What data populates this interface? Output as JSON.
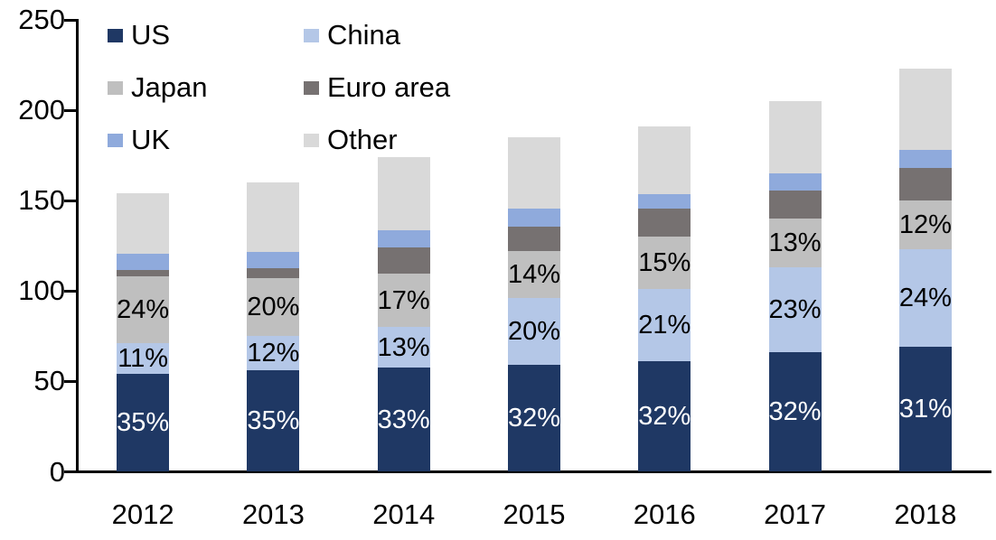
{
  "chart_data": {
    "type": "bar",
    "stacked": true,
    "title": "",
    "xlabel": "",
    "ylabel": "",
    "categories": [
      "2012",
      "2013",
      "2014",
      "2015",
      "2016",
      "2017",
      "2018"
    ],
    "series": [
      {
        "name": "US",
        "color": "#1f3864",
        "values": [
          54,
          56,
          57.5,
          59,
          61,
          66,
          69
        ],
        "percent_labels": [
          "35%",
          "35%",
          "33%",
          "32%",
          "32%",
          "32%",
          "31%"
        ],
        "label_color": "#ffffff"
      },
      {
        "name": "China",
        "color": "#b4c7e7",
        "values": [
          17,
          19,
          22.5,
          37,
          40,
          47,
          54
        ],
        "percent_labels": [
          "11%",
          "12%",
          "13%",
          "20%",
          "21%",
          "23%",
          "24%"
        ],
        "label_color": "#000000"
      },
      {
        "name": "Japan",
        "color": "#bfbfbf",
        "values": [
          37,
          32,
          29.5,
          26,
          29,
          27,
          27
        ],
        "percent_labels": [
          "24%",
          "20%",
          "17%",
          "14%",
          "15%",
          "13%",
          "12%"
        ],
        "label_color": "#000000"
      },
      {
        "name": "Euro area",
        "color": "#767171",
        "values": [
          3.5,
          5.5,
          14.5,
          13.5,
          15.5,
          15.5,
          18
        ]
      },
      {
        "name": "UK",
        "color": "#8faadc",
        "values": [
          9,
          9,
          9.5,
          10,
          8,
          9.5,
          10
        ]
      },
      {
        "name": "Other",
        "color": "#d9d9d9",
        "values": [
          33.5,
          38.5,
          40.5,
          39.5,
          37.5,
          40,
          45
        ]
      }
    ],
    "totals": [
      154,
      160,
      174,
      185,
      191,
      205,
      223
    ],
    "ylim": [
      0,
      250
    ],
    "yticks": [
      0,
      50,
      100,
      150,
      200,
      250
    ],
    "grid": false,
    "legend_position": "top-left"
  },
  "legend": {
    "columns": 2,
    "items": [
      {
        "label": "US",
        "color": "#1f3864"
      },
      {
        "label": "China",
        "color": "#b4c7e7"
      },
      {
        "label": "Japan",
        "color": "#bfbfbf"
      },
      {
        "label": "Euro area",
        "color": "#767171"
      },
      {
        "label": "UK",
        "color": "#8faadc"
      },
      {
        "label": "Other",
        "color": "#d9d9d9"
      }
    ]
  }
}
